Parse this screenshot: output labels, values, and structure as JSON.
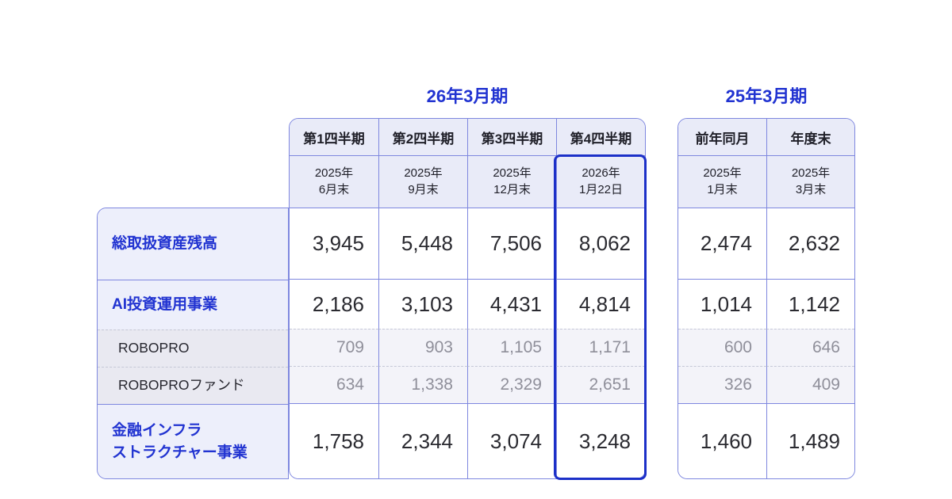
{
  "colors": {
    "accent_blue": "#2133d1",
    "highlight_border": "#1c30c8",
    "grid_border": "#7e87df",
    "header_background": "#e9ebf8",
    "label_background": "#edeffb",
    "sub_row_background": "#f3f3f9",
    "muted_value": "#8f8f9a"
  },
  "chart_data": {
    "type": "table",
    "groups": [
      {
        "title": "26年3月期",
        "columns": [
          "第1四半期",
          "第2四半期",
          "第3四半期",
          "第4四半期"
        ],
        "dates": [
          "2025年\n6月末",
          "2025年\n9月末",
          "2025年\n12月末",
          "2026年\n1月22日"
        ],
        "highlighted_column": "第4四半期"
      },
      {
        "title": "25年3月期",
        "columns": [
          "前年同月",
          "年度末"
        ],
        "dates": [
          "2025年\n1月末",
          "2025年\n3月末"
        ]
      }
    ],
    "rows": [
      {
        "label": "総取扱資産残高",
        "style": "main",
        "values": [
          "3,945",
          "5,448",
          "7,506",
          "8,062",
          "2,474",
          "2,632"
        ]
      },
      {
        "label": "AI投資運用事業",
        "style": "main",
        "values": [
          "2,186",
          "3,103",
          "4,431",
          "4,814",
          "1,014",
          "1,142"
        ]
      },
      {
        "label": "ROBOPRO",
        "style": "sub",
        "values": [
          "709",
          "903",
          "1,105",
          "1,171",
          "600",
          "646"
        ]
      },
      {
        "label": "ROBOPROファンド",
        "style": "sub",
        "values": [
          "634",
          "1,338",
          "2,329",
          "2,651",
          "326",
          "409"
        ]
      },
      {
        "label": "金融インフラ\nストラクチャー事業",
        "style": "main",
        "values": [
          "1,758",
          "2,344",
          "3,074",
          "3,248",
          "1,460",
          "1,489"
        ]
      }
    ]
  }
}
